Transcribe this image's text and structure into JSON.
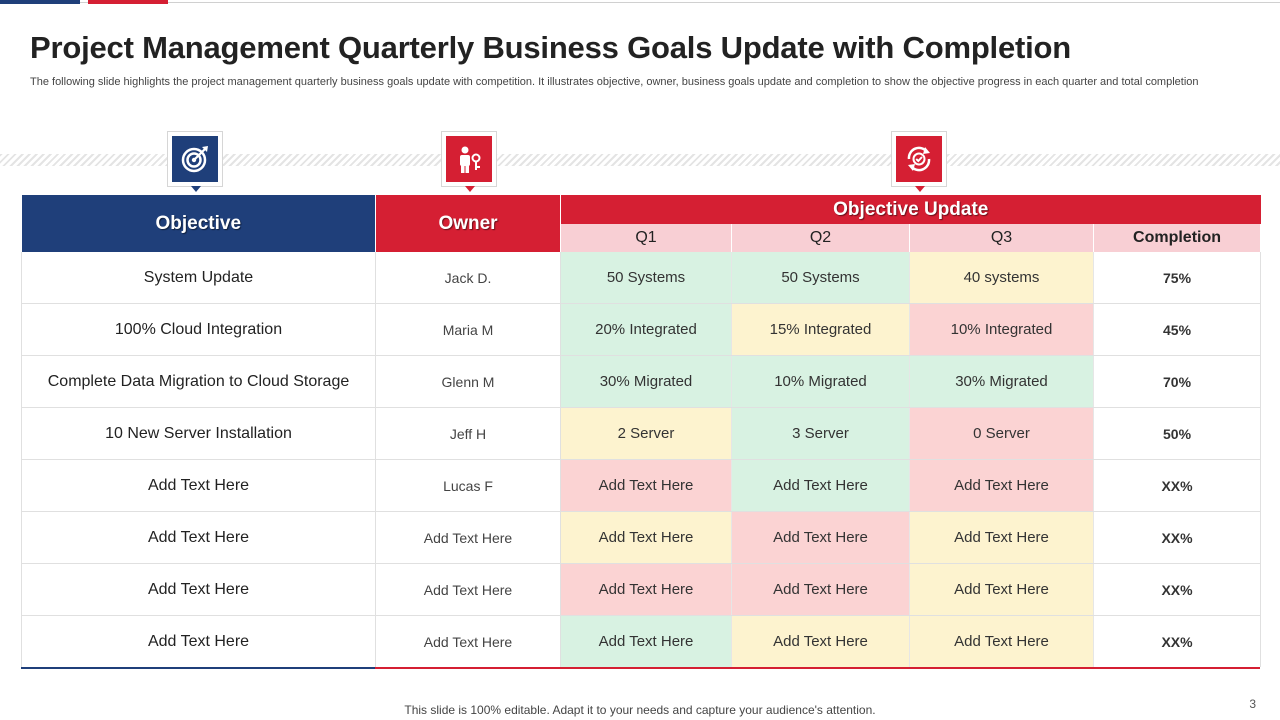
{
  "title": "Project Management Quarterly Business Goals Update with Completion",
  "subtitle": "The following slide highlights the project management quarterly business goals update with competition. It illustrates objective, owner, business goals update and completion to show the objective progress in each quarter and total completion",
  "icons": {
    "objective": "target-icon",
    "owner": "person-key-icon",
    "update": "refresh-check-icon"
  },
  "colors": {
    "blue": "#1f3f7a",
    "red": "#d51f33",
    "green": "#d8f2e2",
    "yellow": "#fdf3cf",
    "pink": "#fbd3d3"
  },
  "table": {
    "headers": {
      "objective": "Objective",
      "owner": "Owner",
      "update": "Objective Update",
      "q1": "Q1",
      "q2": "Q2",
      "q3": "Q3",
      "completion": "Completion"
    },
    "rows": [
      {
        "objective": "System Update",
        "owner": "Jack D.",
        "q1": "50 Systems",
        "q1_status": "green",
        "q2": "50 Systems",
        "q2_status": "green",
        "q3": "40 systems",
        "q3_status": "yellow",
        "completion": "75%"
      },
      {
        "objective": "100% Cloud Integration",
        "owner": "Maria M",
        "q1": "20% Integrated",
        "q1_status": "green",
        "q2": "15% Integrated",
        "q2_status": "yellow",
        "q3": "10% Integrated",
        "q3_status": "pink",
        "completion": "45%"
      },
      {
        "objective": "Complete Data Migration to Cloud Storage",
        "owner": "Glenn M",
        "q1": "30% Migrated",
        "q1_status": "green",
        "q2": "10% Migrated",
        "q2_status": "green",
        "q3": "30% Migrated",
        "q3_status": "green",
        "completion": "70%"
      },
      {
        "objective": "10 New Server Installation",
        "owner": "Jeff H",
        "q1": "2 Server",
        "q1_status": "yellow",
        "q2": "3 Server",
        "q2_status": "green",
        "q3": "0 Server",
        "q3_status": "pink",
        "completion": "50%"
      },
      {
        "objective": "Add Text Here",
        "owner": "Lucas F",
        "q1": "Add Text Here",
        "q1_status": "pink",
        "q2": "Add Text Here",
        "q2_status": "green",
        "q3": "Add Text Here",
        "q3_status": "pink",
        "completion": "XX%"
      },
      {
        "objective": "Add Text Here",
        "owner": "Add Text Here",
        "q1": "Add Text Here",
        "q1_status": "yellow",
        "q2": "Add Text Here",
        "q2_status": "pink",
        "q3": "Add Text Here",
        "q3_status": "yellow",
        "completion": "XX%"
      },
      {
        "objective": "Add Text Here",
        "owner": "Add Text Here",
        "q1": "Add Text Here",
        "q1_status": "pink",
        "q2": "Add Text Here",
        "q2_status": "pink",
        "q3": "Add Text Here",
        "q3_status": "yellow",
        "completion": "XX%"
      },
      {
        "objective": "Add Text Here",
        "owner": "Add Text Here",
        "q1": "Add Text Here",
        "q1_status": "green",
        "q2": "Add Text Here",
        "q2_status": "yellow",
        "q3": "Add Text Here",
        "q3_status": "yellow",
        "completion": "XX%"
      }
    ]
  },
  "footer": "This slide is 100% editable. Adapt it to your needs and capture your audience's attention.",
  "page_number": "3"
}
